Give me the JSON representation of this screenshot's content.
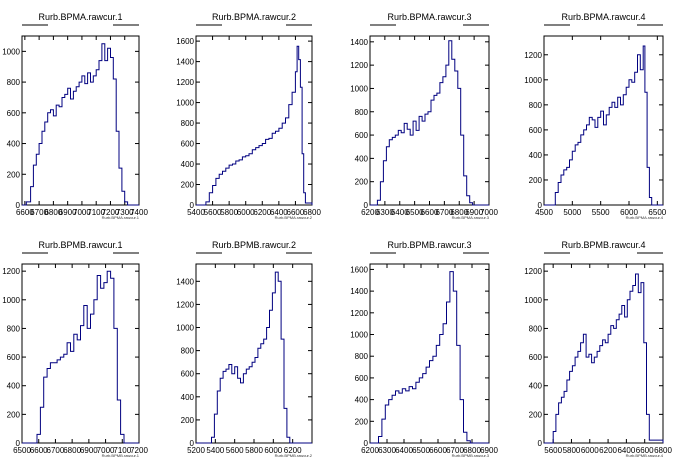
{
  "style": {
    "line_color": "#000080",
    "axis_color": "#000000",
    "background": "#ffffff"
  },
  "chart_data": [
    {
      "type": "histogram",
      "title": "Rurb.BPMA.rawcur.1",
      "xlabel": "Rurb.BPMA.rawcur.1",
      "xlim": [
        6580,
        7400
      ],
      "ylim": [
        0,
        1100
      ],
      "xticks": [
        6600,
        6700,
        6800,
        6900,
        7000,
        7100,
        7200,
        7300,
        7400
      ],
      "yticks": [
        0,
        200,
        400,
        600,
        800,
        1000
      ],
      "x": [
        6580,
        6610,
        6640,
        6660,
        6680,
        6700,
        6720,
        6740,
        6760,
        6780,
        6800,
        6820,
        6840,
        6860,
        6880,
        6900,
        6920,
        6940,
        6960,
        6980,
        7000,
        7020,
        7040,
        7060,
        7080,
        7100,
        7120,
        7140,
        7160,
        7180,
        7200,
        7220,
        7240,
        7260,
        7280,
        7300,
        7320,
        7340,
        7400
      ],
      "y": [
        0,
        20,
        120,
        260,
        330,
        400,
        480,
        540,
        600,
        620,
        580,
        650,
        640,
        700,
        720,
        760,
        690,
        740,
        770,
        800,
        840,
        790,
        860,
        800,
        840,
        880,
        940,
        1050,
        940,
        1020,
        960,
        820,
        480,
        240,
        90,
        20,
        0,
        0,
        0
      ]
    },
    {
      "type": "histogram",
      "title": "Rurb.BPMA.rawcur.2",
      "xlabel": "Rurb.BPMA.rawcur.2",
      "xlim": [
        5400,
        6800
      ],
      "ylim": [
        0,
        1650
      ],
      "xticks": [
        5400,
        5600,
        5800,
        6000,
        6200,
        6400,
        6600,
        6800
      ],
      "yticks": [
        0,
        200,
        400,
        600,
        800,
        1000,
        1200,
        1400,
        1600
      ],
      "x": [
        5400,
        5520,
        5560,
        5600,
        5640,
        5680,
        5720,
        5760,
        5800,
        5840,
        5880,
        5920,
        5960,
        6000,
        6040,
        6080,
        6120,
        6160,
        6200,
        6240,
        6280,
        6320,
        6360,
        6400,
        6440,
        6480,
        6520,
        6560,
        6600,
        6620,
        6640,
        6660,
        6680,
        6700,
        6720,
        6800
      ],
      "y": [
        0,
        30,
        120,
        190,
        260,
        300,
        330,
        360,
        390,
        400,
        430,
        440,
        470,
        480,
        500,
        540,
        560,
        580,
        600,
        640,
        650,
        700,
        720,
        750,
        800,
        850,
        980,
        1100,
        1300,
        1550,
        1420,
        1150,
        500,
        120,
        20,
        0
      ]
    },
    {
      "type": "histogram",
      "title": "Rurb.BPMA.rawcur.3",
      "xlabel": "Rurb.BPMA.rawcur.3",
      "xlim": [
        6200,
        7000
      ],
      "ylim": [
        0,
        1450
      ],
      "xticks": [
        6200,
        6300,
        6400,
        6500,
        6600,
        6700,
        6800,
        6900,
        7000
      ],
      "yticks": [
        0,
        200,
        400,
        600,
        800,
        1000,
        1200,
        1400
      ],
      "x": [
        6200,
        6250,
        6270,
        6290,
        6310,
        6330,
        6350,
        6370,
        6390,
        6410,
        6430,
        6450,
        6470,
        6490,
        6510,
        6530,
        6550,
        6570,
        6590,
        6610,
        6630,
        6650,
        6670,
        6690,
        6710,
        6730,
        6750,
        6770,
        6790,
        6810,
        6830,
        6850,
        6870,
        6890,
        7000
      ],
      "y": [
        0,
        40,
        200,
        380,
        500,
        560,
        580,
        600,
        640,
        620,
        700,
        650,
        600,
        720,
        640,
        760,
        720,
        780,
        800,
        900,
        940,
        960,
        1050,
        1100,
        1200,
        1410,
        1250,
        1150,
        1000,
        600,
        250,
        80,
        20,
        0,
        0
      ]
    },
    {
      "type": "histogram",
      "title": "Rurb.BPMA.rawcur.4",
      "xlabel": "Rurb.BPMA.rawcur.4",
      "xlim": [
        4500,
        6600
      ],
      "ylim": [
        0,
        1350
      ],
      "xticks": [
        4500,
        5000,
        5500,
        6000,
        6500
      ],
      "yticks": [
        0,
        200,
        400,
        600,
        800,
        1000,
        1200
      ],
      "x": [
        4500,
        4700,
        4750,
        4800,
        4850,
        4900,
        4950,
        5000,
        5050,
        5100,
        5150,
        5200,
        5250,
        5300,
        5350,
        5400,
        5450,
        5500,
        5550,
        5600,
        5650,
        5700,
        5750,
        5800,
        5850,
        5900,
        5950,
        6000,
        6050,
        6100,
        6150,
        6200,
        6250,
        6280,
        6320,
        6360,
        6400,
        6600
      ],
      "y": [
        0,
        100,
        180,
        240,
        280,
        300,
        360,
        430,
        480,
        500,
        560,
        600,
        640,
        700,
        680,
        620,
        700,
        750,
        640,
        720,
        780,
        820,
        780,
        860,
        800,
        880,
        940,
        1000,
        980,
        1060,
        1200,
        1080,
        1270,
        900,
        300,
        60,
        0,
        0
      ]
    },
    {
      "type": "histogram",
      "title": "Rurb.BPMB.rawcur.1",
      "xlabel": "Rurb.BPMB.rawcur.1",
      "xlim": [
        6500,
        7200
      ],
      "ylim": [
        0,
        1250
      ],
      "xticks": [
        6500,
        6600,
        6700,
        6800,
        6900,
        7000,
        7100,
        7200
      ],
      "yticks": [
        0,
        200,
        400,
        600,
        800,
        1000,
        1200
      ],
      "x": [
        6500,
        6590,
        6610,
        6630,
        6650,
        6670,
        6690,
        6710,
        6730,
        6750,
        6770,
        6790,
        6810,
        6830,
        6850,
        6870,
        6890,
        6910,
        6930,
        6950,
        6970,
        6990,
        7010,
        7030,
        7050,
        7070,
        7090,
        7110,
        7200
      ],
      "y": [
        0,
        60,
        250,
        460,
        520,
        560,
        560,
        580,
        600,
        620,
        700,
        640,
        760,
        720,
        820,
        960,
        800,
        900,
        1000,
        1170,
        1080,
        1120,
        1200,
        1150,
        800,
        300,
        60,
        0,
        0
      ]
    },
    {
      "type": "histogram",
      "title": "Rurb.BPMB.rawcur.2",
      "xlabel": "Rurb.BPMB.rawcur.2",
      "xlim": [
        5200,
        6400
      ],
      "ylim": [
        0,
        1550
      ],
      "xticks": [
        5200,
        5400,
        5600,
        5800,
        6000,
        6200
      ],
      "yticks": [
        0,
        200,
        400,
        600,
        800,
        1000,
        1200,
        1400
      ],
      "x": [
        5200,
        5360,
        5390,
        5420,
        5450,
        5480,
        5510,
        5540,
        5570,
        5600,
        5630,
        5660,
        5690,
        5720,
        5750,
        5780,
        5810,
        5840,
        5870,
        5900,
        5930,
        5960,
        5990,
        6020,
        6050,
        6080,
        6110,
        6140,
        6170,
        6400
      ],
      "y": [
        0,
        50,
        250,
        450,
        560,
        620,
        640,
        680,
        600,
        660,
        560,
        520,
        600,
        640,
        660,
        700,
        740,
        820,
        860,
        900,
        1000,
        1150,
        1300,
        1480,
        1400,
        900,
        300,
        50,
        0,
        0
      ]
    },
    {
      "type": "histogram",
      "title": "Rurb.BPMB.rawcur.3",
      "xlabel": "Rurb.BPMB.rawcur.3",
      "xlim": [
        6200,
        6900
      ],
      "ylim": [
        0,
        1650
      ],
      "xticks": [
        6200,
        6300,
        6400,
        6500,
        6600,
        6700,
        6800,
        6900
      ],
      "yticks": [
        0,
        200,
        400,
        600,
        800,
        1000,
        1200,
        1400,
        1600
      ],
      "x": [
        6200,
        6250,
        6270,
        6290,
        6310,
        6330,
        6350,
        6370,
        6390,
        6410,
        6430,
        6450,
        6470,
        6490,
        6510,
        6530,
        6550,
        6570,
        6590,
        6610,
        6630,
        6650,
        6670,
        6690,
        6710,
        6730,
        6750,
        6770,
        6790,
        6900
      ],
      "y": [
        0,
        60,
        220,
        350,
        400,
        440,
        480,
        460,
        500,
        480,
        520,
        500,
        560,
        600,
        640,
        700,
        760,
        800,
        900,
        1000,
        1100,
        1300,
        1580,
        1400,
        900,
        400,
        100,
        20,
        0,
        0
      ]
    },
    {
      "type": "histogram",
      "title": "Rurb.BPMB.rawcur.4",
      "xlabel": "Rurb.BPMB.rawcur.4",
      "xlim": [
        5500,
        6800
      ],
      "ylim": [
        0,
        1250
      ],
      "xticks": [
        5600,
        5800,
        6000,
        6200,
        6400,
        6600,
        6800
      ],
      "yticks": [
        0,
        200,
        400,
        600,
        800,
        1000,
        1200
      ],
      "x": [
        5500,
        5600,
        5630,
        5660,
        5690,
        5720,
        5750,
        5780,
        5810,
        5840,
        5870,
        5900,
        5930,
        5960,
        5990,
        6020,
        6050,
        6080,
        6110,
        6140,
        6170,
        6200,
        6230,
        6260,
        6290,
        6320,
        6350,
        6380,
        6410,
        6440,
        6470,
        6500,
        6530,
        6560,
        6590,
        6620,
        6650,
        6800
      ],
      "y": [
        0,
        80,
        200,
        280,
        320,
        360,
        440,
        500,
        540,
        600,
        640,
        700,
        760,
        600,
        620,
        560,
        600,
        640,
        680,
        720,
        700,
        760,
        820,
        800,
        860,
        900,
        960,
        880,
        1000,
        1060,
        1100,
        1180,
        1050,
        1120,
        700,
        200,
        20,
        0
      ]
    }
  ]
}
